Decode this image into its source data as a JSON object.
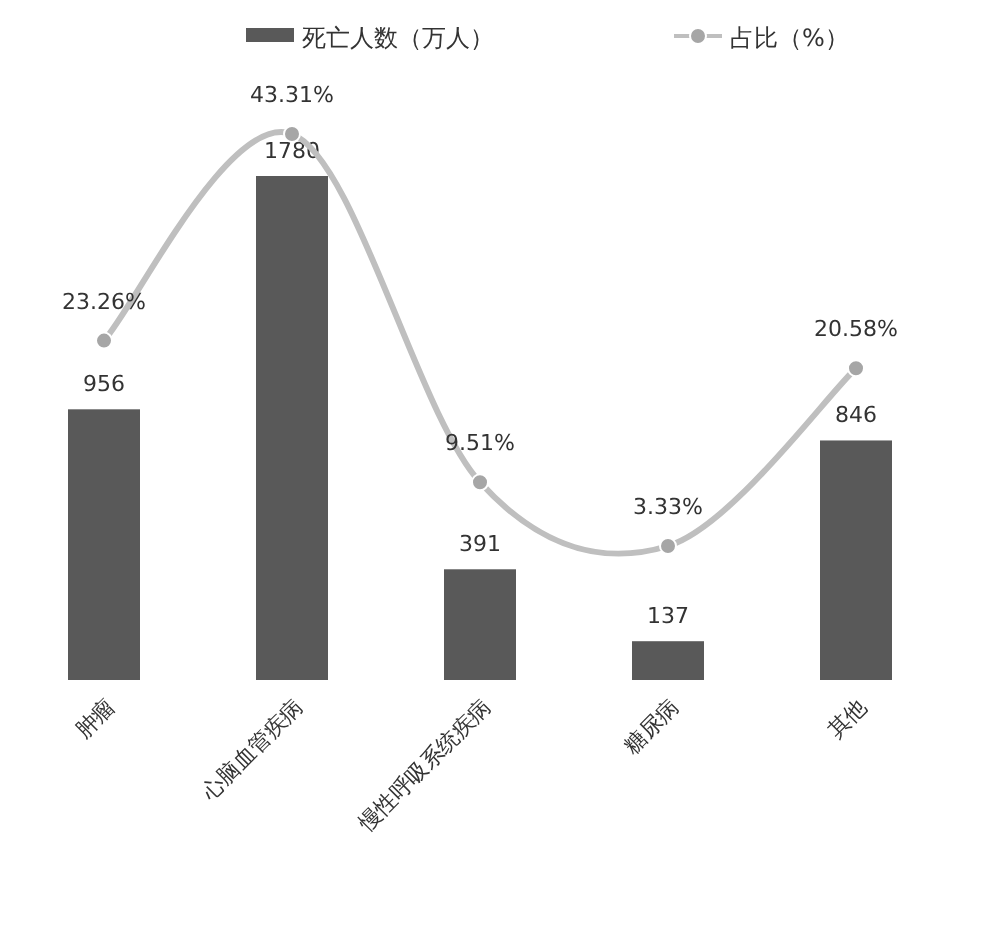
{
  "chart_data": {
    "type": "bar",
    "categories": [
      "肿瘤",
      "心脑血管疾病",
      "慢性呼吸系统疾病",
      "糖尿病",
      "其他"
    ],
    "series": [
      {
        "name": "死亡人数（万人）",
        "color": "#595959",
        "values": [
          956,
          1780,
          391,
          137,
          846
        ]
      },
      {
        "name": "占比（%）",
        "type": "line",
        "axis": "y2",
        "color": "#bfbfbf",
        "values": [
          23.26,
          43.31,
          9.51,
          3.33,
          20.58
        ],
        "value_labels": [
          "23.26%",
          "43.31%",
          "9.51%",
          "3.33%",
          "20.58%"
        ]
      }
    ],
    "data_labels": true,
    "legend": "top",
    "marker": "circle",
    "line_style": "solid",
    "grid": false
  }
}
